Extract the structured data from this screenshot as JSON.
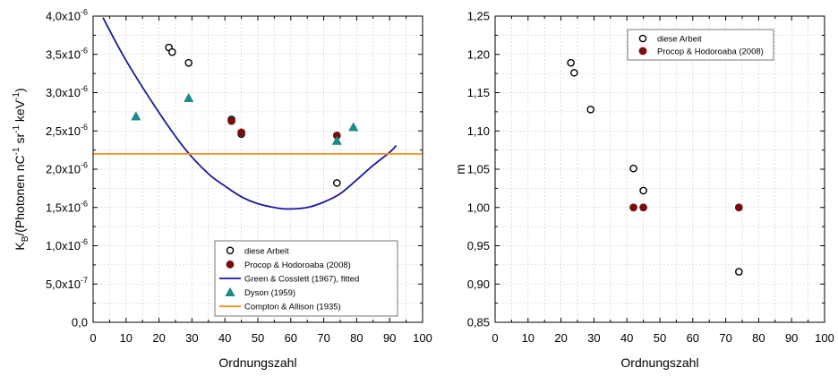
{
  "chart_data": [
    {
      "type": "scatter",
      "xlabel": "Ordnungszahl",
      "ylabel_main": "K",
      "ylabel_sub": "B",
      "ylabel_rest": "/(Photonen nC",
      "ylabel_sup1": "-1",
      "ylabel_mid": " sr",
      "ylabel_sup2": "-1",
      "ylabel_mid2": " keV",
      "ylabel_sup3": "-1",
      "ylabel_end": ")",
      "xlim": [
        0,
        100
      ],
      "ylim": [
        0,
        4e-06
      ],
      "x_ticks": [
        "0",
        "10",
        "20",
        "30",
        "40",
        "50",
        "60",
        "70",
        "80",
        "90",
        "100"
      ],
      "y_ticks": [
        {
          "value": 0,
          "mant": "0,0",
          "exp": ""
        },
        {
          "value": 5e-07,
          "mant": "5,0x10",
          "exp": "-7"
        },
        {
          "value": 1e-06,
          "mant": "1,0x10",
          "exp": "-6"
        },
        {
          "value": 1.5e-06,
          "mant": "1,5x10",
          "exp": "-6"
        },
        {
          "value": 2e-06,
          "mant": "2,0x10",
          "exp": "-6"
        },
        {
          "value": 2.5e-06,
          "mant": "2,5x10",
          "exp": "-6"
        },
        {
          "value": 3e-06,
          "mant": "3,0x10",
          "exp": "-6"
        },
        {
          "value": 3.5e-06,
          "mant": "3,5x10",
          "exp": "-6"
        },
        {
          "value": 4e-06,
          "mant": "4,0x10",
          "exp": "-6"
        }
      ],
      "grid": true,
      "legend_position": "bottom-right",
      "series": [
        {
          "name": "diese Arbeit",
          "marker": "open-circle",
          "color": "#000000",
          "points": [
            [
              23,
              3.59e-06
            ],
            [
              24,
              3.53e-06
            ],
            [
              29,
              3.39e-06
            ],
            [
              42,
              2.65e-06
            ],
            [
              45,
              2.46e-06
            ],
            [
              74,
              1.82e-06
            ]
          ]
        },
        {
          "name": "Procop & Hodoroaba (2008)",
          "marker": "filled-circle",
          "color": "#7a0c0c",
          "points": [
            [
              42,
              2.63e-06
            ],
            [
              45,
              2.48e-06
            ],
            [
              74,
              2.44e-06
            ]
          ]
        },
        {
          "name": "Green & Cosslett (1967), fitted",
          "marker": "line",
          "color": "#1a1a9c",
          "points": [
            [
              3,
              3.98e-06
            ],
            [
              10,
              3.42e-06
            ],
            [
              20,
              2.74e-06
            ],
            [
              28,
              2.26e-06
            ],
            [
              35,
              1.94e-06
            ],
            [
              40,
              1.78e-06
            ],
            [
              45,
              1.64e-06
            ],
            [
              50,
              1.55e-06
            ],
            [
              55,
              1.5e-06
            ],
            [
              59,
              1.48e-06
            ],
            [
              65,
              1.5e-06
            ],
            [
              70,
              1.57e-06
            ],
            [
              75,
              1.68e-06
            ],
            [
              80,
              1.86e-06
            ],
            [
              85,
              2.05e-06
            ],
            [
              90,
              2.22e-06
            ],
            [
              92,
              2.31e-06
            ]
          ]
        },
        {
          "name": "Dyson (1959)",
          "marker": "triangle",
          "color": "#1a8a8a",
          "points": [
            [
              13,
              2.69e-06
            ],
            [
              29,
              2.93e-06
            ],
            [
              74,
              2.37e-06
            ],
            [
              79,
              2.55e-06
            ]
          ]
        },
        {
          "name": "Compton & Allison (1935)",
          "marker": "line",
          "color": "#ff8c1a",
          "points": [
            [
              0,
              2.2e-06
            ],
            [
              100,
              2.2e-06
            ]
          ]
        }
      ]
    },
    {
      "type": "scatter",
      "xlabel": "Ordnungszahl",
      "ylabel": "m",
      "xlim": [
        0,
        100
      ],
      "ylim": [
        0.85,
        1.25
      ],
      "x_ticks": [
        "0",
        "10",
        "20",
        "30",
        "40",
        "50",
        "60",
        "70",
        "80",
        "90",
        "100"
      ],
      "y_ticks": [
        {
          "value": 0.85,
          "label": "0,85"
        },
        {
          "value": 0.9,
          "label": "0,90"
        },
        {
          "value": 0.95,
          "label": "0,95"
        },
        {
          "value": 1.0,
          "label": "1,00"
        },
        {
          "value": 1.05,
          "label": "1,05"
        },
        {
          "value": 1.1,
          "label": "1,10"
        },
        {
          "value": 1.15,
          "label": "1,15"
        },
        {
          "value": 1.2,
          "label": "1,20"
        },
        {
          "value": 1.25,
          "label": "1,25"
        }
      ],
      "grid": true,
      "legend_position": "top-right",
      "series": [
        {
          "name": "diese Arbeit",
          "marker": "open-circle",
          "color": "#000000",
          "points": [
            [
              23,
              1.189
            ],
            [
              24,
              1.176
            ],
            [
              29,
              1.128
            ],
            [
              42,
              1.051
            ],
            [
              45,
              1.022
            ],
            [
              74,
              0.916
            ]
          ]
        },
        {
          "name": "Procop & Hodoroaba (2008)",
          "marker": "filled-circle",
          "color": "#7a0c0c",
          "points": [
            [
              42,
              1.0
            ],
            [
              45,
              1.0
            ],
            [
              74,
              1.0
            ]
          ]
        }
      ]
    }
  ]
}
